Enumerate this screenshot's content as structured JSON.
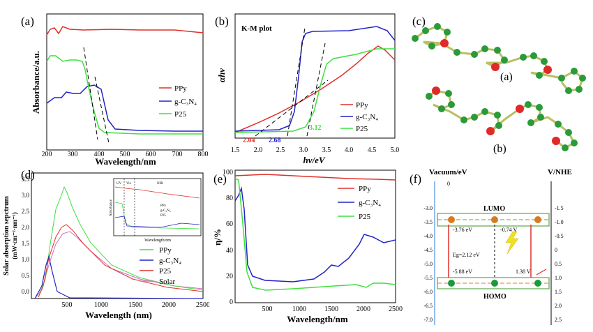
{
  "panels": {
    "a": {
      "letter": "(a)",
      "ylabel": "Absorbance/a.u.",
      "xlabel": "Wavelength/nm",
      "xticks": [
        "200",
        "300",
        "400",
        "500",
        "600",
        "700",
        "800"
      ],
      "legend": [
        "PPy",
        "g-C₃N₄",
        "P25"
      ]
    },
    "b": {
      "letter": "(b)",
      "title": "K-M plot",
      "ylabel": "αhν",
      "xlabel": "hν/eV",
      "xticks": [
        "1.5",
        "2.0",
        "2.5",
        "3.0",
        "3.5",
        "4.0",
        "4.5",
        "5.0"
      ],
      "legend": [
        "PPy",
        "g-C₃N₄",
        "P25"
      ],
      "annotations": [
        "2.04",
        "2.68",
        "3.12"
      ]
    },
    "c": {
      "letter": "(c)",
      "sub_a": "(a)",
      "sub_b": "(b)"
    },
    "d": {
      "letter": "(d)",
      "ylabel": "Solar absorption sepctrum",
      "yunit": "(mW·cm⁻²·nm⁻¹)",
      "xlabel": "Wavelength (nm)",
      "xticks": [
        "500",
        "1000",
        "1500",
        "2000",
        "2500"
      ],
      "yticks": [
        "0.0",
        "0.5",
        "1.0",
        "1.5",
        "2.0",
        "2.5",
        "3.0",
        "3.5"
      ],
      "legend": [
        "PPy",
        "g-C₃N₄",
        "P25",
        "Solar"
      ],
      "inset": {
        "uv": "UV",
        "vis": "Vis",
        "nir": "NIR",
        "xlabel": "Wavelength/nm",
        "ylabel": "Absorbance",
        "legend": [
          "PPy",
          "g-C₃N₄",
          "P25"
        ]
      }
    },
    "e": {
      "letter": "(e)",
      "ylabel": "η/%",
      "xlabel": "Wavelength/nm",
      "xticks": [
        "500",
        "1000",
        "1500",
        "2000",
        "2500"
      ],
      "yticks": [
        "0",
        "20",
        "40",
        "60",
        "80",
        "100"
      ],
      "legend": [
        "PPy",
        "g-C₃N₄",
        "P25"
      ]
    },
    "f": {
      "letter": "(f)",
      "left_title": "Vacuum/eV",
      "right_title": "V/NHE",
      "zero": "0",
      "left_ticks": [
        "-3.0",
        "-3.5",
        "-4.0",
        "-4.5",
        "-5.0",
        "-5.5",
        "-6.0",
        "-6.5",
        "-7.0"
      ],
      "right_ticks": [
        "-1.5",
        "-1.0",
        "-0.5",
        "0",
        "0.5",
        "1.0",
        "1.5",
        "2.0",
        "2.5"
      ],
      "lumo": "LUMO",
      "homo": "HOMO",
      "v1": "-3.76 eV",
      "v2": "-0.74 V",
      "v3": "Eg=2.12 eV",
      "v4": "-5.88 eV",
      "v5": "1.38 V"
    }
  },
  "colors": {
    "ppy": "#e0302b",
    "gcn": "#2323c8",
    "p25": "#3ee03e",
    "solar": "#d070c0"
  }
}
